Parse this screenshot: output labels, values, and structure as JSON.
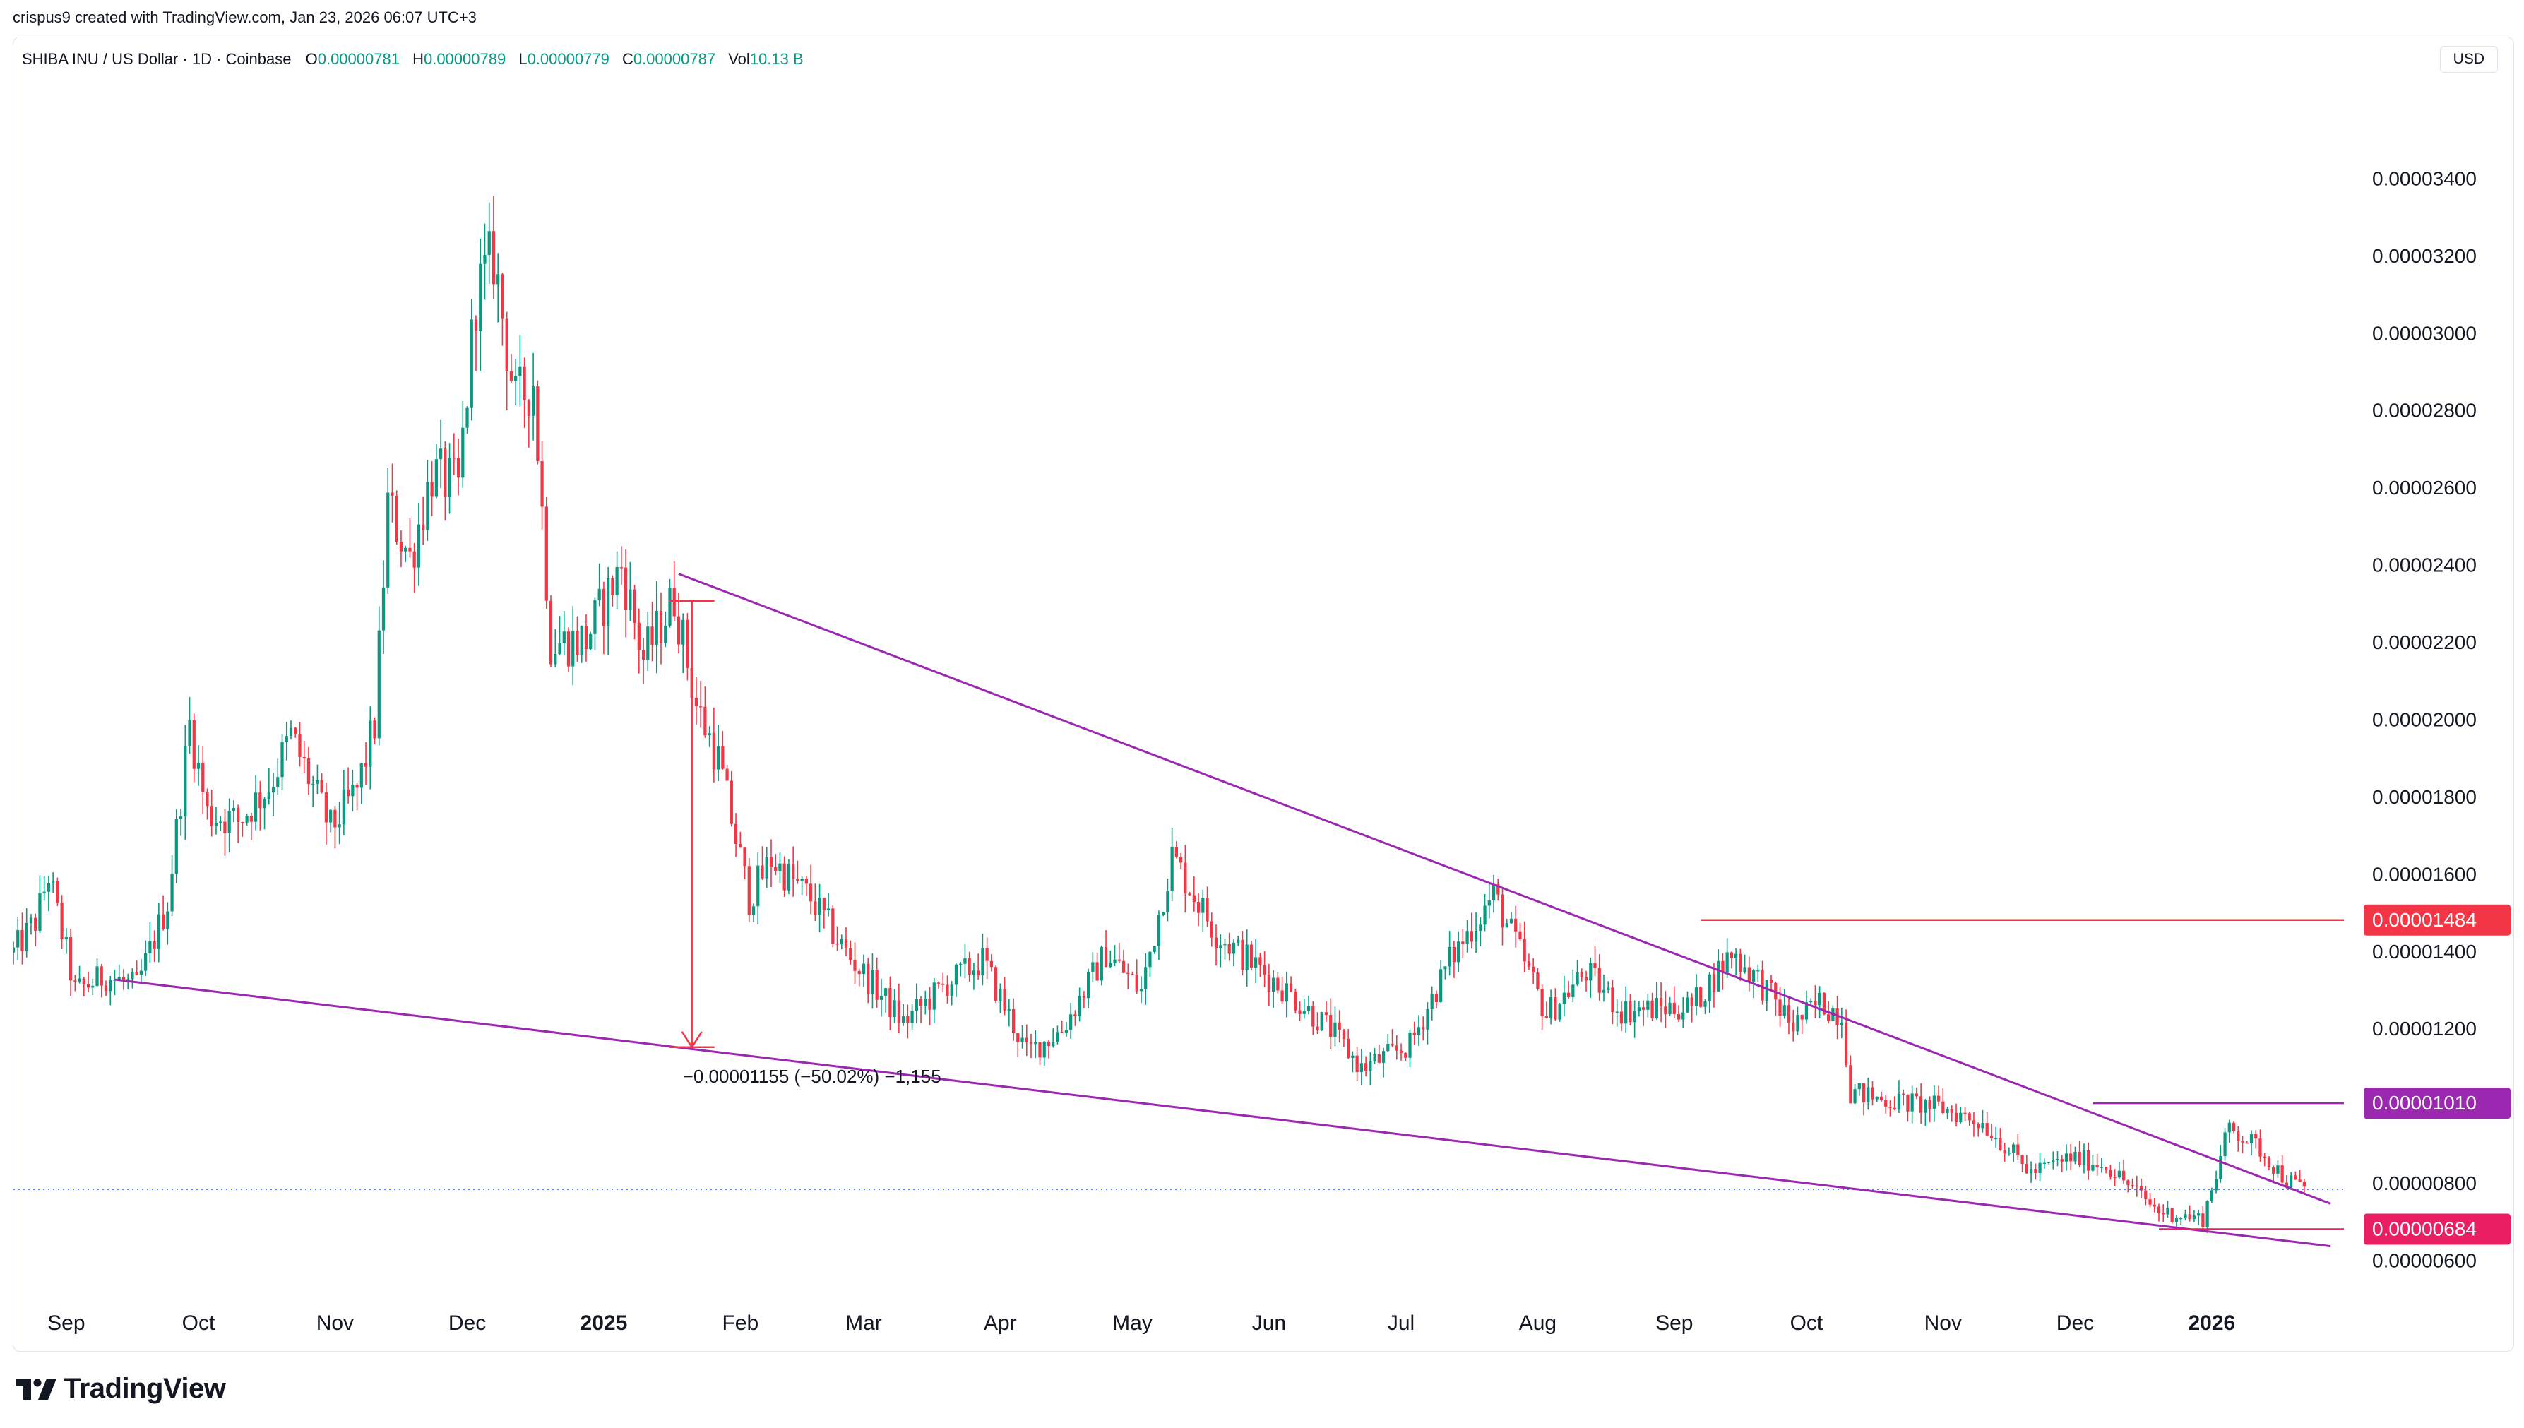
{
  "caption": "crispus9 created with TradingView.com, Jan 23, 2026 06:07 UTC+3",
  "symbol": {
    "name": "SHIBA INU / US Dollar · 1D · Coinbase",
    "open_label": "O",
    "open": "0.00000781",
    "high_label": "H",
    "high": "0.00000789",
    "low_label": "L",
    "low": "0.00000779",
    "close_label": "C",
    "close": "0.00000787",
    "vol_label": "Vol",
    "vol": "10.13 B"
  },
  "currency_button": "USD",
  "brand": "TradingView",
  "colors": {
    "up": "#089981",
    "down": "#f23645",
    "trendline": "#9c27b0",
    "hline": "#f23645",
    "badge_purple": "#9c27b0",
    "badge_red": "#f23645",
    "badge_pink": "#e91e63"
  },
  "chart_data": {
    "type": "candlestick",
    "xlabel": "",
    "ylabel": "",
    "x_ticks": [
      "Sep",
      "Oct",
      "Nov",
      "Dec",
      "2025",
      "Feb",
      "Mar",
      "Apr",
      "May",
      "Jun",
      "Jul",
      "Aug",
      "Sep",
      "Oct",
      "Nov",
      "Dec",
      "2026"
    ],
    "x_ticks_bold": [
      "2025",
      "2026"
    ],
    "y_ticks": [
      "0.00000600",
      "0.00000800",
      "0.00001000",
      "0.00001200",
      "0.00001400",
      "0.00001600",
      "0.00001800",
      "0.00002000",
      "0.00002200",
      "0.00002400",
      "0.00002600",
      "0.00002800",
      "0.00003000",
      "0.00003200",
      "0.00003400"
    ],
    "ylim": [
      5.15e-06,
      3.695e-05
    ],
    "x_range": [
      "2024-08-20",
      "2026-01-31"
    ],
    "price_path": [
      [
        "2024-08-20",
        1.4e-05
      ],
      [
        "2024-08-25",
        1.48e-05
      ],
      [
        "2024-08-28",
        1.6e-05
      ],
      [
        "2024-09-03",
        1.3e-05
      ],
      [
        "2024-09-10",
        1.34e-05
      ],
      [
        "2024-09-17",
        1.31e-05
      ],
      [
        "2024-09-24",
        1.53e-05
      ],
      [
        "2024-09-29",
        1.99e-05
      ],
      [
        "2024-10-03",
        1.76e-05
      ],
      [
        "2024-10-10",
        1.74e-05
      ],
      [
        "2024-10-17",
        1.83e-05
      ],
      [
        "2024-10-22",
        1.96e-05
      ],
      [
        "2024-10-31",
        1.72e-05
      ],
      [
        "2024-11-06",
        1.82e-05
      ],
      [
        "2024-11-10",
        1.99e-05
      ],
      [
        "2024-11-13",
        2.56e-05
      ],
      [
        "2024-11-18",
        2.42e-05
      ],
      [
        "2024-11-23",
        2.64e-05
      ],
      [
        "2024-11-29",
        2.6e-05
      ],
      [
        "2024-12-03",
        3.1e-05
      ],
      [
        "2024-12-07",
        3.2e-05
      ],
      [
        "2024-12-12",
        2.82e-05
      ],
      [
        "2024-12-16",
        2.88e-05
      ],
      [
        "2024-12-20",
        2.2e-05
      ],
      [
        "2024-12-28",
        2.21e-05
      ],
      [
        "2025-01-05",
        2.4e-05
      ],
      [
        "2025-01-10",
        2.16e-05
      ],
      [
        "2025-01-17",
        2.32e-05
      ],
      [
        "2025-01-22",
        2.04e-05
      ],
      [
        "2025-01-27",
        1.9e-05
      ],
      [
        "2025-02-03",
        1.54e-05
      ],
      [
        "2025-02-08",
        1.64e-05
      ],
      [
        "2025-02-17",
        1.54e-05
      ],
      [
        "2025-02-25",
        1.4e-05
      ],
      [
        "2025-03-10",
        1.22e-05
      ],
      [
        "2025-03-20",
        1.32e-05
      ],
      [
        "2025-03-28",
        1.38e-05
      ],
      [
        "2025-04-07",
        1.14e-05
      ],
      [
        "2025-04-15",
        1.2e-05
      ],
      [
        "2025-04-25",
        1.4e-05
      ],
      [
        "2025-05-03",
        1.3e-05
      ],
      [
        "2025-05-10",
        1.65e-05
      ],
      [
        "2025-05-20",
        1.45e-05
      ],
      [
        "2025-06-05",
        1.3e-05
      ],
      [
        "2025-06-15",
        1.2e-05
      ],
      [
        "2025-06-22",
        1.1e-05
      ],
      [
        "2025-07-03",
        1.16e-05
      ],
      [
        "2025-07-12",
        1.38e-05
      ],
      [
        "2025-07-22",
        1.55e-05
      ],
      [
        "2025-07-28",
        1.4e-05
      ],
      [
        "2025-08-03",
        1.24e-05
      ],
      [
        "2025-08-12",
        1.35e-05
      ],
      [
        "2025-08-20",
        1.25e-05
      ],
      [
        "2025-09-05",
        1.26e-05
      ],
      [
        "2025-09-14",
        1.4e-05
      ],
      [
        "2025-09-20",
        1.33e-05
      ],
      [
        "2025-09-28",
        1.21e-05
      ],
      [
        "2025-10-04",
        1.27e-05
      ],
      [
        "2025-10-09",
        1.24e-05
      ],
      [
        "2025-10-11",
        1.04e-05
      ],
      [
        "2025-10-18",
        1.02e-05
      ],
      [
        "2025-10-31",
        1e-05
      ],
      [
        "2025-11-10",
        9.6e-06
      ],
      [
        "2025-11-21",
        8.3e-06
      ],
      [
        "2025-11-30",
        8.7e-06
      ],
      [
        "2025-12-08",
        8.5e-06
      ],
      [
        "2025-12-20",
        7.3e-06
      ],
      [
        "2025-12-30",
        7.1e-06
      ],
      [
        "2026-01-05",
        9.5e-06
      ],
      [
        "2026-01-12",
        8.9e-06
      ],
      [
        "2026-01-18",
        8.1e-06
      ],
      [
        "2026-01-22",
        7.9e-06
      ]
    ],
    "trendlines": [
      {
        "from": [
          "2025-01-18",
          2.38e-05
        ],
        "to": [
          "2026-01-28",
          7.5e-06
        ]
      },
      {
        "from": [
          "2024-09-12",
          1.33e-05
        ],
        "to": [
          "2026-01-28",
          6.4e-06
        ]
      }
    ],
    "horizontal_levels": [
      {
        "from": "2025-09-07",
        "to": "2026-01-31",
        "value": 1.484e-05,
        "label": "0.00001484",
        "color": "#f23645"
      },
      {
        "from": "2025-12-05",
        "to": "2026-01-31",
        "value": 1.01e-05,
        "label": "0.00001010",
        "color": "#9c27b0"
      },
      {
        "from": "2025-12-20",
        "to": "2026-01-31",
        "value": 6.84e-06,
        "label": "0.00000684",
        "color": "#e91e63"
      }
    ],
    "current_price_line": 7.87e-06,
    "measure": {
      "date": "2025-01-21",
      "from": 2.31e-05,
      "to": 1.155e-05,
      "label": "−0.00001155 (−50.02%) −1,155"
    }
  }
}
